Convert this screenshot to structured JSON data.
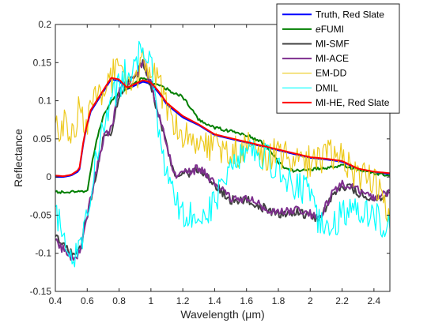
{
  "chart_data": {
    "type": "line",
    "xlabel": "Wavelength (μm)",
    "ylabel": "Reflectance",
    "xlim": [
      0.4,
      2.5
    ],
    "ylim": [
      -0.15,
      0.2
    ],
    "xticks": [
      0.4,
      0.6,
      0.8,
      1,
      1.2,
      1.4,
      1.6,
      1.8,
      2,
      2.2,
      2.4
    ],
    "xtick_labels": [
      "0.4",
      "0.6",
      "0.8",
      "1",
      "1.2",
      "1.4",
      "1.6",
      "1.8",
      "2",
      "2.2",
      "2.4"
    ],
    "yticks": [
      -0.15,
      -0.1,
      -0.05,
      0,
      0.05,
      0.1,
      0.15,
      0.2
    ],
    "ytick_labels": [
      "-0.15",
      "-0.1",
      "-0.05",
      "0",
      "0.05",
      "0.1",
      "0.15",
      "0.2"
    ],
    "grid": false,
    "legend_position": "top-right",
    "series": [
      {
        "name": "Truth, Red Slate",
        "color": "#0000ff",
        "width": 2,
        "x": [
          0.4,
          0.45,
          0.5,
          0.55,
          0.58,
          0.62,
          0.68,
          0.75,
          0.8,
          0.85,
          0.9,
          0.95,
          1.0,
          1.05,
          1.1,
          1.2,
          1.3,
          1.4,
          1.5,
          1.6,
          1.7,
          1.8,
          1.9,
          2.0,
          2.1,
          2.2,
          2.3,
          2.4,
          2.5
        ],
        "y": [
          0.0,
          0.0,
          0.002,
          0.008,
          0.05,
          0.085,
          0.105,
          0.128,
          0.126,
          0.115,
          0.12,
          0.125,
          0.122,
          0.11,
          0.095,
          0.078,
          0.068,
          0.055,
          0.05,
          0.045,
          0.04,
          0.035,
          0.03,
          0.025,
          0.023,
          0.02,
          0.01,
          0.006,
          0.004
        ]
      },
      {
        "name": "eFUMI",
        "label_prefix_italic": "e",
        "label_rest": "FUMI",
        "color": "#007f00",
        "width": 2,
        "x": [
          0.4,
          0.45,
          0.5,
          0.55,
          0.6,
          0.65,
          0.7,
          0.75,
          0.8,
          0.85,
          0.9,
          0.95,
          1.0,
          1.05,
          1.1,
          1.2,
          1.25,
          1.3,
          1.4,
          1.5,
          1.6,
          1.7,
          1.75,
          1.8,
          1.85,
          1.9,
          2.0,
          2.1,
          2.2,
          2.3,
          2.4,
          2.5
        ],
        "y": [
          -0.02,
          -0.02,
          -0.02,
          -0.02,
          -0.018,
          0.04,
          0.08,
          0.1,
          0.11,
          0.115,
          0.123,
          0.13,
          0.125,
          0.12,
          0.115,
          0.105,
          0.09,
          0.075,
          0.065,
          0.06,
          0.055,
          0.045,
          0.035,
          0.02,
          0.01,
          0.008,
          0.01,
          0.012,
          0.015,
          0.01,
          0.005,
          0.002
        ]
      },
      {
        "name": "MI-SMF",
        "color": "#404040",
        "width": 2,
        "x": [
          0.4,
          0.45,
          0.5,
          0.55,
          0.6,
          0.65,
          0.7,
          0.75,
          0.8,
          0.85,
          0.9,
          0.95,
          1.0,
          1.05,
          1.1,
          1.15,
          1.2,
          1.25,
          1.3,
          1.35,
          1.4,
          1.45,
          1.5,
          1.6,
          1.7,
          1.8,
          1.9,
          2.0,
          2.05,
          2.1,
          2.15,
          2.2,
          2.3,
          2.4,
          2.5
        ],
        "y": [
          -0.08,
          -0.09,
          -0.1,
          -0.1,
          -0.05,
          0.0,
          0.05,
          0.06,
          0.11,
          0.12,
          0.13,
          0.15,
          0.12,
          0.08,
          0.04,
          0.0,
          0.01,
          0.005,
          0.01,
          0.0,
          -0.01,
          -0.02,
          -0.03,
          -0.03,
          -0.04,
          -0.05,
          -0.045,
          -0.05,
          -0.055,
          -0.04,
          -0.02,
          -0.01,
          -0.02,
          -0.03,
          -0.02
        ]
      },
      {
        "name": "MI-ACE",
        "color": "#7e2f8e",
        "width": 2,
        "x": [
          0.4,
          0.45,
          0.5,
          0.55,
          0.6,
          0.65,
          0.7,
          0.75,
          0.8,
          0.85,
          0.9,
          0.95,
          1.0,
          1.05,
          1.1,
          1.15,
          1.2,
          1.25,
          1.3,
          1.35,
          1.4,
          1.45,
          1.5,
          1.6,
          1.7,
          1.8,
          1.9,
          2.0,
          2.05,
          2.1,
          2.15,
          2.2,
          2.3,
          2.4,
          2.5
        ],
        "y": [
          -0.085,
          -0.095,
          -0.105,
          -0.1,
          -0.05,
          0.0,
          0.05,
          0.062,
          0.112,
          0.122,
          0.132,
          0.152,
          0.122,
          0.082,
          0.042,
          0.002,
          0.012,
          0.007,
          0.012,
          0.002,
          -0.008,
          -0.018,
          -0.028,
          -0.028,
          -0.038,
          -0.048,
          -0.043,
          -0.048,
          -0.053,
          -0.038,
          -0.018,
          -0.008,
          -0.018,
          -0.028,
          -0.018
        ]
      },
      {
        "name": "EM-DD",
        "color": "#edc91b",
        "width": 1.2,
        "x": [
          0.4,
          0.45,
          0.5,
          0.55,
          0.6,
          0.65,
          0.7,
          0.75,
          0.8,
          0.85,
          0.9,
          0.95,
          1.0,
          1.05,
          1.1,
          1.2,
          1.3,
          1.4,
          1.5,
          1.6,
          1.7,
          1.8,
          1.9,
          2.0,
          2.1,
          2.2,
          2.3,
          2.4,
          2.5
        ],
        "y": [
          0.06,
          0.07,
          0.05,
          0.09,
          0.07,
          0.1,
          0.12,
          0.13,
          0.14,
          0.11,
          0.13,
          0.15,
          0.14,
          0.12,
          0.09,
          0.06,
          0.05,
          0.04,
          0.03,
          0.04,
          0.03,
          0.03,
          0.02,
          0.02,
          0.03,
          0.03,
          0.0,
          0.0,
          -0.06
        ]
      },
      {
        "name": "DMIL",
        "color": "#00ffff",
        "width": 1.2,
        "x": [
          0.4,
          0.45,
          0.5,
          0.55,
          0.6,
          0.65,
          0.7,
          0.75,
          0.8,
          0.85,
          0.9,
          0.95,
          1.0,
          1.05,
          1.1,
          1.15,
          1.2,
          1.25,
          1.3,
          1.35,
          1.4,
          1.45,
          1.5,
          1.6,
          1.7,
          1.8,
          1.9,
          2.0,
          2.05,
          2.1,
          2.15,
          2.2,
          2.3,
          2.4,
          2.5
        ],
        "y": [
          -0.05,
          -0.07,
          -0.1,
          -0.1,
          -0.04,
          0.02,
          0.06,
          0.1,
          0.12,
          0.14,
          0.15,
          0.17,
          0.15,
          0.05,
          0.0,
          -0.03,
          -0.05,
          -0.05,
          -0.04,
          -0.05,
          -0.03,
          -0.01,
          0.02,
          0.04,
          0.03,
          0.01,
          -0.01,
          -0.02,
          -0.06,
          -0.07,
          -0.06,
          -0.05,
          -0.04,
          -0.05,
          -0.07
        ]
      },
      {
        "name": "MI-HE, Red Slate",
        "color": "#ff0000",
        "width": 2,
        "x": [
          0.4,
          0.45,
          0.5,
          0.55,
          0.58,
          0.62,
          0.68,
          0.75,
          0.8,
          0.85,
          0.9,
          0.95,
          1.0,
          1.05,
          1.1,
          1.2,
          1.3,
          1.4,
          1.5,
          1.6,
          1.7,
          1.8,
          1.9,
          2.0,
          2.1,
          2.2,
          2.3,
          2.4,
          2.5
        ],
        "y": [
          0.002,
          0.001,
          0.003,
          0.01,
          0.052,
          0.087,
          0.107,
          0.13,
          0.128,
          0.117,
          0.122,
          0.127,
          0.124,
          0.112,
          0.097,
          0.08,
          0.069,
          0.056,
          0.051,
          0.046,
          0.041,
          0.036,
          0.031,
          0.026,
          0.024,
          0.021,
          0.011,
          0.007,
          0.005
        ]
      }
    ]
  }
}
